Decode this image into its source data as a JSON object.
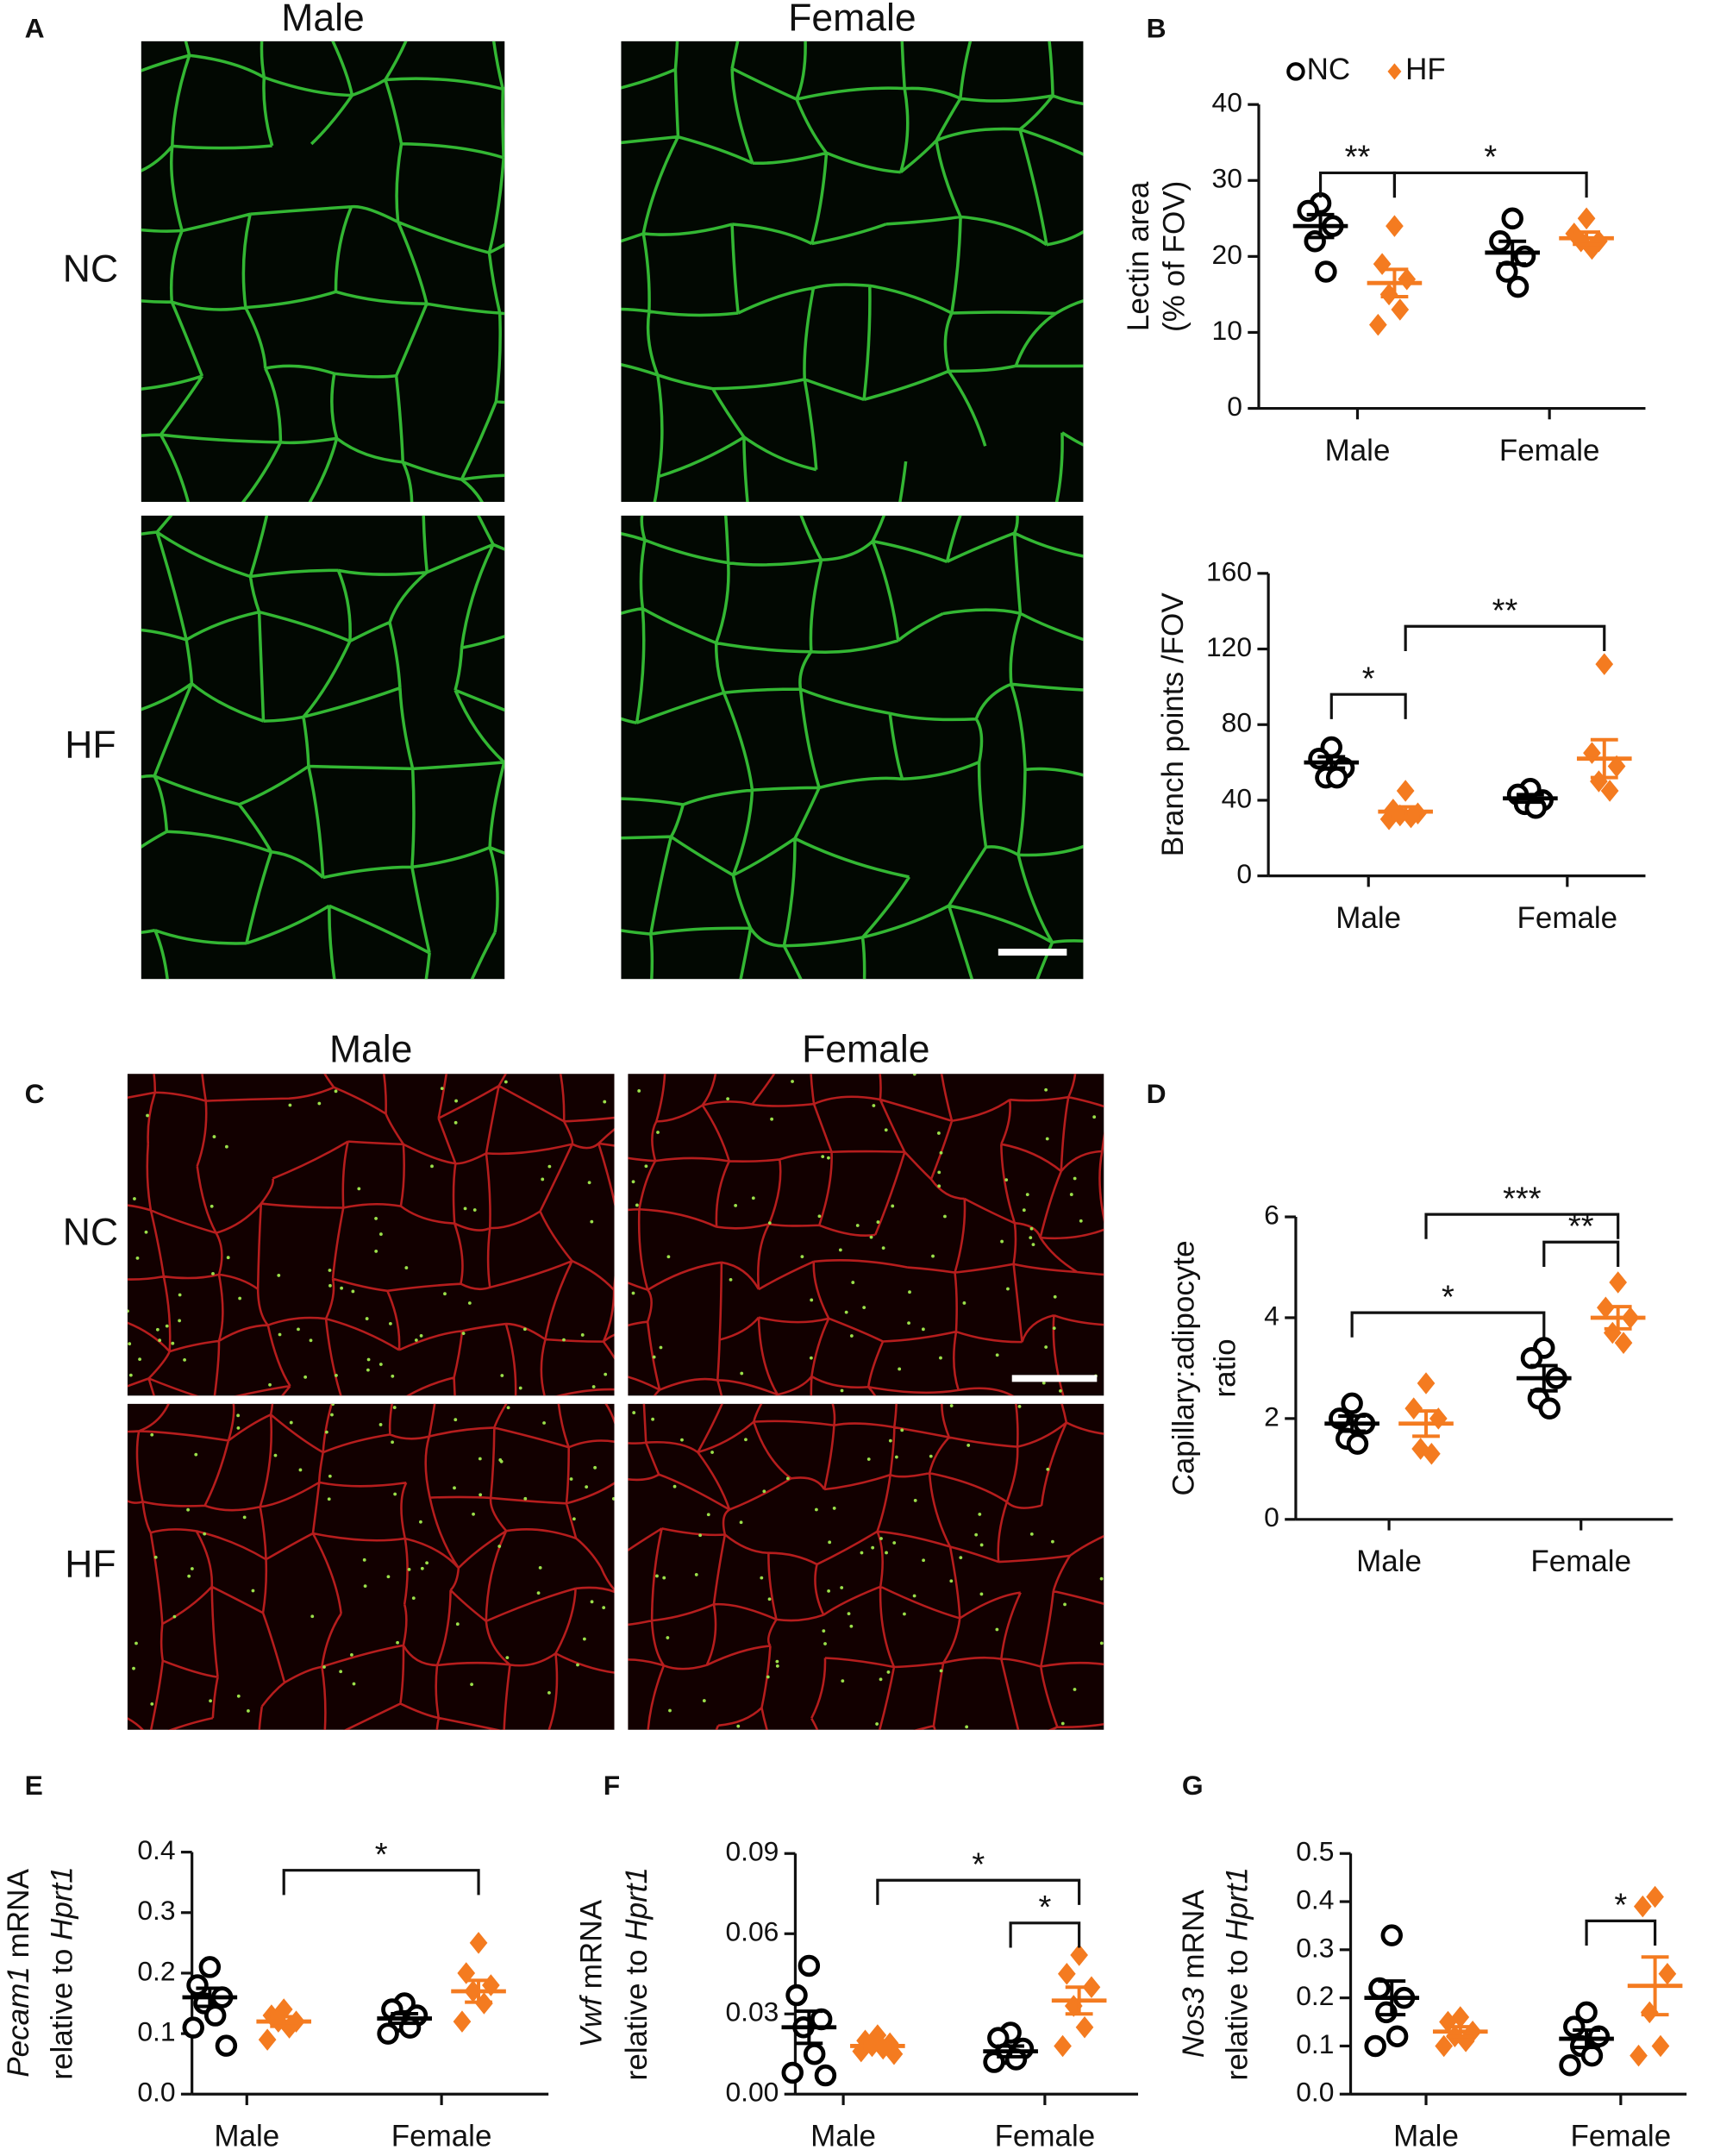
{
  "panel_labels": [
    "A",
    "B",
    "C",
    "D",
    "E",
    "F",
    "G"
  ],
  "images": [
    {
      "col_labels": [
        "Male",
        "Female"
      ],
      "row_labels": [
        "NC",
        "HF"
      ],
      "color": "#3cd63c"
    },
    {
      "col_labels": [
        "Male",
        "Female"
      ],
      "row_labels": [
        "NC",
        "HF"
      ],
      "color": "#d42222"
    }
  ],
  "chart_data": [
    {
      "type": "dot",
      "legend": true,
      "categories": [
        "Male",
        "Female"
      ],
      "ylabel": [
        [
          "Lectin area"
        ],
        [
          "(% of FOV)"
        ]
      ],
      "ylim": [
        0,
        40
      ],
      "yticks": [
        0,
        10,
        20,
        30,
        40
      ],
      "series": [
        {
          "name": "NC",
          "color": "#000000",
          "marker": "circle",
          "points": [
            [
              27,
              26,
              24,
              22,
              18
            ],
            [
              25,
              22,
              20,
              18,
              16
            ]
          ],
          "mean": [
            24,
            20.5
          ],
          "sem": [
            1.5,
            1.5
          ]
        },
        {
          "name": "HF",
          "color": "#f47b20",
          "marker": "diamond",
          "points": [
            [
              24,
              19,
              17,
              15,
              13,
              11
            ],
            [
              25,
              23,
              22,
              22,
              21
            ]
          ],
          "mean": [
            16.5,
            22.4
          ],
          "sem": [
            1.8,
            0.8
          ]
        }
      ],
      "annotations": [
        {
          "label": "**",
          "from": [
            0,
            0
          ],
          "to": [
            1,
            0
          ],
          "y": 31
        },
        {
          "label": "*",
          "from": [
            1,
            0
          ],
          "to": [
            1,
            1
          ],
          "y": 31
        }
      ]
    },
    {
      "type": "dot",
      "categories": [
        "Male",
        "Female"
      ],
      "ylabel": [
        [
          "Branch points /FOV"
        ]
      ],
      "ylim": [
        0,
        160
      ],
      "yticks": [
        0,
        40,
        80,
        120,
        160
      ],
      "series": [
        {
          "color": "#000000",
          "marker": "circle",
          "points": [
            [
              68,
              62,
              57,
              52,
              52
            ],
            [
              46,
              43,
              40,
              38,
              36
            ]
          ],
          "mean": [
            60,
            41
          ],
          "sem": [
            3,
            2
          ]
        },
        {
          "color": "#f47b20",
          "marker": "diamond",
          "points": [
            [
              45,
              35,
              33,
              32,
              31,
              30
            ],
            [
              112,
              65,
              58,
              50,
              45
            ]
          ],
          "mean": [
            34,
            62
          ],
          "sem": [
            2.5,
            10
          ]
        }
      ],
      "annotations": [
        {
          "label": "*",
          "from": [
            0,
            0
          ],
          "to": [
            1,
            0
          ],
          "y": 96
        },
        {
          "label": "**",
          "from": [
            1,
            0
          ],
          "to": [
            1,
            1
          ],
          "y": 132
        }
      ]
    },
    {
      "type": "dot",
      "categories": [
        "Male",
        "Female"
      ],
      "ylabel": [
        [
          "Capillary:adipocyte"
        ],
        [
          "ratio"
        ]
      ],
      "ylim": [
        0,
        6
      ],
      "yticks": [
        0,
        2,
        4,
        6
      ],
      "series": [
        {
          "color": "#000000",
          "marker": "circle",
          "points": [
            [
              2.3,
              2.0,
              1.9,
              1.6,
              1.5
            ],
            [
              3.4,
              3.2,
              2.8,
              2.4,
              2.2
            ]
          ],
          "mean": [
            1.9,
            2.8
          ],
          "sem": [
            0.15,
            0.25
          ]
        },
        {
          "color": "#f47b20",
          "marker": "diamond",
          "points": [
            [
              2.7,
              2.2,
              2.0,
              1.4,
              1.3
            ],
            [
              4.7,
              4.2,
              4.0,
              3.7,
              3.5
            ]
          ],
          "mean": [
            1.9,
            4.0
          ],
          "sem": [
            0.25,
            0.22
          ]
        }
      ],
      "annotations": [
        {
          "label": "*",
          "from": [
            0,
            0
          ],
          "to": [
            0,
            1
          ],
          "y": 4.1
        },
        {
          "label": "**",
          "from": [
            0,
            1
          ],
          "to": [
            1,
            1
          ],
          "y": 5.5
        },
        {
          "label": "***",
          "from": [
            1,
            0
          ],
          "to": [
            1,
            1
          ],
          "y": 6.05
        }
      ]
    },
    {
      "type": "dot",
      "categories": [
        "Male",
        "Female"
      ],
      "ylabel": [
        [
          {
            "text": "Pecam1",
            "italic": true
          },
          " mRNA"
        ],
        [
          "relative to ",
          {
            "text": "Hprt1",
            "italic": true
          }
        ]
      ],
      "ylim": [
        0,
        0.4
      ],
      "yticks": [
        {
          "value": 0,
          "label": "0.0"
        },
        0.1,
        0.2,
        0.3,
        0.4
      ],
      "series": [
        {
          "color": "#000000",
          "marker": "circle",
          "points": [
            [
              0.21,
              0.18,
              0.16,
              0.15,
              0.13,
              0.11,
              0.08
            ],
            [
              0.15,
              0.14,
              0.13,
              0.12,
              0.11,
              0.1
            ]
          ],
          "mean": [
            0.16,
            0.125
          ],
          "sem": [
            0.015,
            0.008
          ]
        },
        {
          "color": "#f47b20",
          "marker": "diamond",
          "points": [
            [
              0.14,
              0.13,
              0.12,
              0.12,
              0.11,
              0.09
            ],
            [
              0.25,
              0.2,
              0.18,
              0.17,
              0.15,
              0.12
            ]
          ],
          "mean": [
            0.12,
            0.17
          ],
          "sem": [
            0.008,
            0.018
          ]
        }
      ],
      "annotations": [
        {
          "label": "*",
          "from": [
            1,
            0
          ],
          "to": [
            1,
            1
          ],
          "y": 0.37
        }
      ]
    },
    {
      "type": "dot",
      "categories": [
        "Male",
        "Female"
      ],
      "ylabel": [
        [
          {
            "text": "Vwf",
            "italic": true
          },
          " mRNA"
        ],
        [
          "relative to ",
          {
            "text": "Hprt1",
            "italic": true
          }
        ]
      ],
      "ylim": [
        0,
        0.09
      ],
      "yticks": [
        {
          "value": 0,
          "label": "0.00"
        },
        0.03,
        0.06,
        0.09
      ],
      "series": [
        {
          "color": "#000000",
          "marker": "circle",
          "points": [
            [
              0.048,
              0.037,
              0.028,
              0.025,
              0.015,
              0.008,
              0.007
            ],
            [
              0.023,
              0.021,
              0.017,
              0.015,
              0.013,
              0.012
            ]
          ],
          "mean": [
            0.025,
            0.016
          ],
          "sem": [
            0.006,
            0.002
          ]
        },
        {
          "color": "#f47b20",
          "marker": "diamond",
          "points": [
            [
              0.022,
              0.02,
              0.019,
              0.018,
              0.017,
              0.016,
              0.015
            ],
            [
              0.052,
              0.045,
              0.04,
              0.033,
              0.025,
              0.018
            ]
          ],
          "mean": [
            0.018,
            0.035
          ],
          "sem": [
            0.001,
            0.005
          ]
        }
      ],
      "annotations": [
        {
          "label": "*",
          "from": [
            1,
            0
          ],
          "to": [
            1,
            1
          ],
          "y": 0.08
        },
        {
          "label": "*",
          "from": [
            0,
            1
          ],
          "to": [
            1,
            1
          ],
          "y": 0.064
        }
      ]
    },
    {
      "type": "dot",
      "categories": [
        "Male",
        "Female"
      ],
      "ylabel": [
        [
          {
            "text": "Nos3",
            "italic": true
          },
          " mRNA"
        ],
        [
          "relative to ",
          {
            "text": "Hprt1",
            "italic": true
          }
        ]
      ],
      "ylim": [
        0,
        0.5
      ],
      "yticks": [
        {
          "value": 0,
          "label": "0.0"
        },
        0.1,
        0.2,
        0.3,
        0.4,
        0.5
      ],
      "series": [
        {
          "color": "#000000",
          "marker": "circle",
          "points": [
            [
              0.33,
              0.22,
              0.2,
              0.17,
              0.12,
              0.1
            ],
            [
              0.17,
              0.14,
              0.12,
              0.1,
              0.08,
              0.06
            ]
          ],
          "mean": [
            0.2,
            0.115
          ],
          "sem": [
            0.035,
            0.018
          ]
        },
        {
          "color": "#f47b20",
          "marker": "diamond",
          "points": [
            [
              0.16,
              0.15,
              0.13,
              0.12,
              0.11,
              0.1
            ],
            [
              0.41,
              0.39,
              0.25,
              0.17,
              0.1,
              0.08
            ]
          ],
          "mean": [
            0.13,
            0.225
          ],
          "sem": [
            0.01,
            0.06
          ]
        }
      ],
      "annotations": [
        {
          "label": "*",
          "from": [
            0,
            1
          ],
          "to": [
            1,
            1
          ],
          "y": 0.36
        }
      ]
    }
  ]
}
